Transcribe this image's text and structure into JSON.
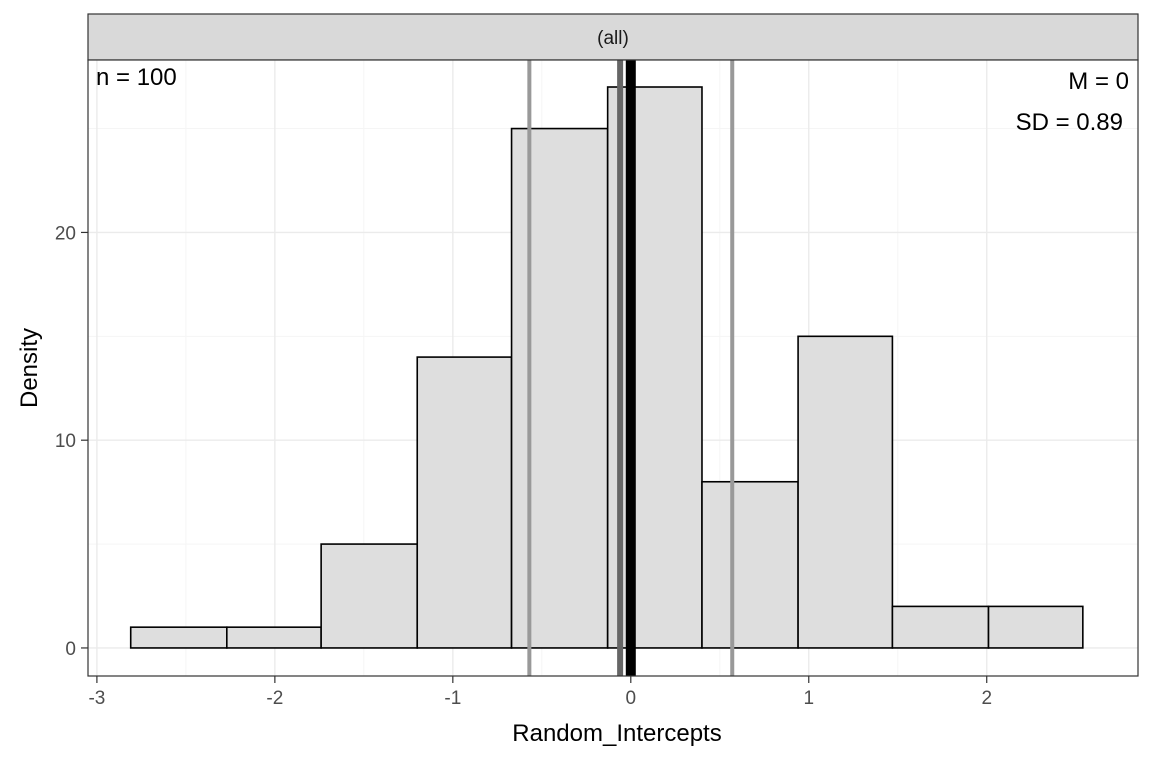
{
  "chart_data": {
    "type": "bar",
    "facet_label": "(all)",
    "xlabel": "Random_Intercepts",
    "ylabel": "Density",
    "xlim": [
      -3.05,
      2.85
    ],
    "ylim": [
      -1.35,
      28.3
    ],
    "x_ticks": [
      -3,
      -2,
      -1,
      0,
      1,
      2
    ],
    "x_tick_labels": [
      "-3",
      "-2",
      "-1",
      "0",
      "1",
      "2"
    ],
    "y_ticks": [
      0,
      10,
      20
    ],
    "y_tick_labels": [
      "0",
      "10",
      "20"
    ],
    "bins": [
      {
        "x0": -2.81,
        "x1": -2.27,
        "value": 1
      },
      {
        "x0": -2.27,
        "x1": -1.74,
        "value": 1
      },
      {
        "x0": -1.74,
        "x1": -1.2,
        "value": 5
      },
      {
        "x0": -1.2,
        "x1": -0.67,
        "value": 14
      },
      {
        "x0": -0.67,
        "x1": -0.13,
        "value": 25
      },
      {
        "x0": -0.13,
        "x1": 0.4,
        "value": 27
      },
      {
        "x0": 0.4,
        "x1": 0.94,
        "value": 8
      },
      {
        "x0": 0.94,
        "x1": 1.47,
        "value": 15
      },
      {
        "x0": 1.47,
        "x1": 2.01,
        "value": 2
      },
      {
        "x0": 2.01,
        "x1": 2.54,
        "value": 2
      }
    ],
    "reference_lines": [
      {
        "x": -0.57,
        "color": "#999999"
      },
      {
        "x": 0.57,
        "color": "#999999"
      },
      {
        "x": -0.06,
        "color": "#666666"
      },
      {
        "x": 0.0,
        "color": "#000000"
      }
    ],
    "annotations": {
      "n": "n = 100",
      "mean": "M = 0",
      "sd": "SD = 0.89"
    },
    "grid": true,
    "colors": {
      "bar_fill": "#dedede",
      "bar_stroke": "#000000",
      "grid_major": "#ebebeb",
      "grid_minor": "#f5f5f5",
      "strip_fill": "#d9d9d9",
      "panel_border": "#333333"
    }
  }
}
